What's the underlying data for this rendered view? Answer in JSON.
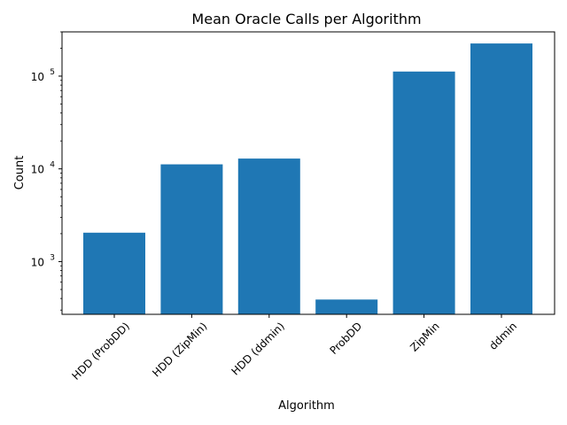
{
  "chart_data": {
    "type": "bar",
    "title": "Mean Oracle Calls per Algorithm",
    "xlabel": "Algorithm",
    "ylabel": "Count",
    "yscale": "log",
    "ylim": [
      270,
      300000
    ],
    "yticks": [
      {
        "value": 1000,
        "base": "10",
        "exp": "3"
      },
      {
        "value": 10000,
        "base": "10",
        "exp": "4"
      },
      {
        "value": 100000,
        "base": "10",
        "exp": "5"
      }
    ],
    "categories": [
      "HDD (ProbDD)",
      "HDD (ZipMin)",
      "HDD (ddmin)",
      "ProbDD",
      "ZipMin",
      "ddmin"
    ],
    "values": [
      2050,
      11200,
      12900,
      390,
      112000,
      225000
    ],
    "bar_color": "#1f77b4",
    "grid": false,
    "legend": "none"
  }
}
